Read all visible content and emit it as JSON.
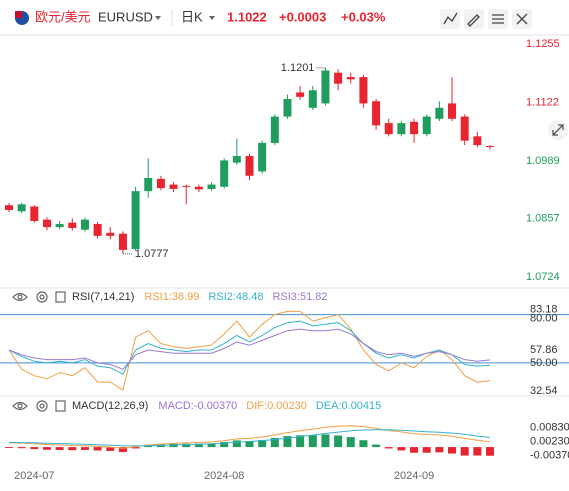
{
  "header": {
    "symbol_name": "欧元/美元",
    "symbol": "EURUSD",
    "period": "日K",
    "price": "1.1022",
    "change": "+0.0003",
    "change_pct": "+0.03%"
  },
  "chart_data": [
    {
      "type": "candlestick",
      "categories": [
        null,
        null,
        "2024-07",
        null,
        null,
        null,
        null,
        null,
        null,
        null,
        null,
        null,
        null,
        null,
        null,
        null,
        null,
        "2024-08",
        null,
        null,
        null,
        null,
        null,
        null,
        null,
        null,
        null,
        null,
        null,
        null,
        null,
        null,
        "2024-09",
        null,
        null,
        null,
        null,
        null,
        null
      ],
      "open": [
        1.0888,
        1.0874,
        1.0885,
        1.0855,
        1.0838,
        1.0848,
        1.0832,
        1.0845,
        1.0825,
        1.0823,
        1.0788,
        1.092,
        1.0948,
        1.0935,
        1.0932,
        1.093,
        1.0925,
        1.093,
        1.0985,
        1.1,
        1.0965,
        1.103,
        1.109,
        1.1145,
        1.111,
        1.112,
        1.119,
        1.118,
        1.118,
        1.1125,
        1.1075,
        1.105,
        1.1078,
        1.105,
        1.1085,
        1.112,
        1.109,
        1.1045,
        1.1023
      ],
      "high": [
        1.0893,
        1.0894,
        1.0888,
        1.086,
        1.0852,
        1.0858,
        1.086,
        1.085,
        1.0838,
        1.0828,
        1.093,
        1.0995,
        1.0955,
        1.094,
        1.0935,
        1.0935,
        1.094,
        1.0995,
        1.104,
        1.1005,
        1.1035,
        1.1095,
        1.114,
        1.116,
        1.116,
        1.1201,
        1.1198,
        1.119,
        1.1185,
        1.113,
        1.1085,
        1.108,
        1.1085,
        1.1095,
        1.1125,
        1.118,
        1.1095,
        1.1055,
        1.1025
      ],
      "low": [
        1.0872,
        1.087,
        1.0848,
        1.0831,
        1.0833,
        1.083,
        1.0828,
        1.0812,
        1.081,
        1.0777,
        1.0784,
        1.0905,
        1.0922,
        1.0918,
        1.089,
        1.0918,
        1.092,
        1.0926,
        1.098,
        1.0945,
        1.096,
        1.1025,
        1.1085,
        1.1128,
        1.1105,
        1.1115,
        1.115,
        1.1165,
        1.111,
        1.106,
        1.1045,
        1.1045,
        1.103,
        1.1045,
        1.108,
        1.108,
        1.1025,
        1.102,
        1.1015
      ],
      "close": [
        1.0877,
        1.089,
        1.0852,
        1.0838,
        1.0845,
        1.0836,
        1.0855,
        1.0818,
        1.0818,
        1.0786,
        1.092,
        1.095,
        1.0927,
        1.0925,
        1.093,
        1.0924,
        1.0935,
        1.099,
        1.1,
        1.0955,
        1.103,
        1.109,
        1.113,
        1.1135,
        1.115,
        1.1195,
        1.1165,
        1.1175,
        1.112,
        1.107,
        1.105,
        1.1075,
        1.105,
        1.109,
        1.111,
        1.1085,
        1.1035,
        1.1025,
        1.1022
      ],
      "up_color": "#1f9c5e",
      "down_color": "#e8242f",
      "high_label": "1.1201",
      "low_label": "1.0777",
      "ylim": [
        1.0706,
        1.1276
      ],
      "yticks": [
        1.0724,
        1.0857,
        1.0989,
        1.1122,
        1.1255
      ]
    },
    {
      "type": "line",
      "title": "RSI(7,14,21)",
      "series": [
        {
          "name": "RSI1:38.99",
          "color": "#f0a045",
          "values": [
            58,
            46,
            42,
            40,
            44,
            42,
            47,
            38,
            38,
            33,
            66,
            70,
            62,
            60,
            59,
            60,
            61,
            68,
            76,
            66,
            74,
            80,
            82,
            82,
            76,
            78,
            80,
            71,
            58,
            49,
            45,
            50,
            47,
            54,
            58,
            52,
            42,
            38,
            38.99
          ]
        },
        {
          "name": "RSI2:48.48",
          "color": "#35b3cc",
          "values": [
            58,
            54,
            51,
            50,
            51,
            50,
            52,
            48,
            47,
            43,
            58,
            62,
            59,
            58,
            57,
            58,
            58,
            62,
            67,
            63,
            67,
            72,
            75,
            76,
            73,
            74,
            75,
            70,
            62,
            56,
            53,
            55,
            53,
            56,
            58,
            55,
            49,
            48,
            48.48
          ]
        },
        {
          "name": "RSI3:51.82",
          "color": "#9a7ad0",
          "values": [
            58,
            55,
            53,
            52,
            52,
            52,
            53,
            50,
            49,
            46,
            55,
            58,
            57,
            56,
            56,
            56,
            56,
            59,
            63,
            61,
            64,
            67,
            70,
            71,
            70,
            70,
            71,
            68,
            62,
            57,
            55,
            56,
            54,
            56,
            57,
            55,
            52,
            51,
            51.82
          ]
        }
      ],
      "ylim": [
        30,
        86
      ],
      "yticks": [
        {
          "value": 80,
          "label": "80.00",
          "line": true
        },
        83.18,
        57.86,
        {
          "value": 50,
          "label": "50.00",
          "line": true
        },
        32.54
      ],
      "line_color": "#3d8fd6"
    },
    {
      "type": "macd",
      "title": "MACD(12,26,9)",
      "series": [
        {
          "name": "MACD:-0.00370",
          "color": "#9a6fd0",
          "style": "bar",
          "values": [
            -0.0004,
            -0.00048,
            -0.00086,
            -0.00116,
            -0.00124,
            -0.00132,
            -0.00122,
            -0.00146,
            -0.00164,
            -0.00212,
            -0.00058,
            0.00066,
            0.00116,
            0.0014,
            0.00144,
            0.00148,
            0.0015,
            0.00216,
            0.00284,
            0.0026,
            0.00304,
            0.00388,
            0.0047,
            0.00504,
            0.00516,
            0.0054,
            0.00496,
            0.00428,
            0.00294,
            0.00108,
            -0.00058,
            -0.00142,
            -0.00242,
            -0.00242,
            -0.00226,
            -0.00276,
            -0.00364,
            -0.0036,
            -0.0037
          ]
        },
        {
          "name": "DIF:0.00230",
          "color": "#f0a045",
          "values": [
            0.0018,
            0.0017,
            0.0014,
            0.0011,
            0.0009,
            0.0007,
            0.0006,
            0.0003,
            0.0,
            -0.0005,
            0.0002,
            0.0009,
            0.0013,
            0.0016,
            0.0018,
            0.002,
            0.0022,
            0.0028,
            0.0035,
            0.0037,
            0.0043,
            0.0052,
            0.0062,
            0.007,
            0.0077,
            0.0085,
            0.0089,
            0.0091,
            0.0088,
            0.008,
            0.0071,
            0.0065,
            0.0057,
            0.0054,
            0.0052,
            0.0046,
            0.0037,
            0.0029,
            0.0023
          ]
        },
        {
          "name": "DEA:0.00415",
          "color": "#35b3cc",
          "values": [
            0.002,
            0.00194,
            0.00183,
            0.00168,
            0.00152,
            0.00136,
            0.00121,
            0.00103,
            0.00082,
            0.00056,
            0.00049,
            0.00057,
            0.00072,
            0.0009,
            0.00108,
            0.00126,
            0.00145,
            0.00172,
            0.00208,
            0.0024,
            0.00278,
            0.00326,
            0.00385,
            0.00448,
            0.00512,
            0.0058,
            0.00642,
            0.00696,
            0.00733,
            0.00746,
            0.00739,
            0.00721,
            0.00691,
            0.00661,
            0.00633,
            0.00598,
            0.00552,
            0.0047,
            0.00415
          ]
        }
      ],
      "up_color": "#1f9c5e",
      "down_color": "#e8242f",
      "ylim": [
        -0.0081,
        0.0146
      ],
      "yticks": [
        {
          "value": 0.0083,
          "label": "0.00830"
        },
        {
          "value": 0.0023,
          "label": "0.00230"
        },
        {
          "value": -0.0037,
          "label": "-0.00370"
        }
      ]
    }
  ]
}
